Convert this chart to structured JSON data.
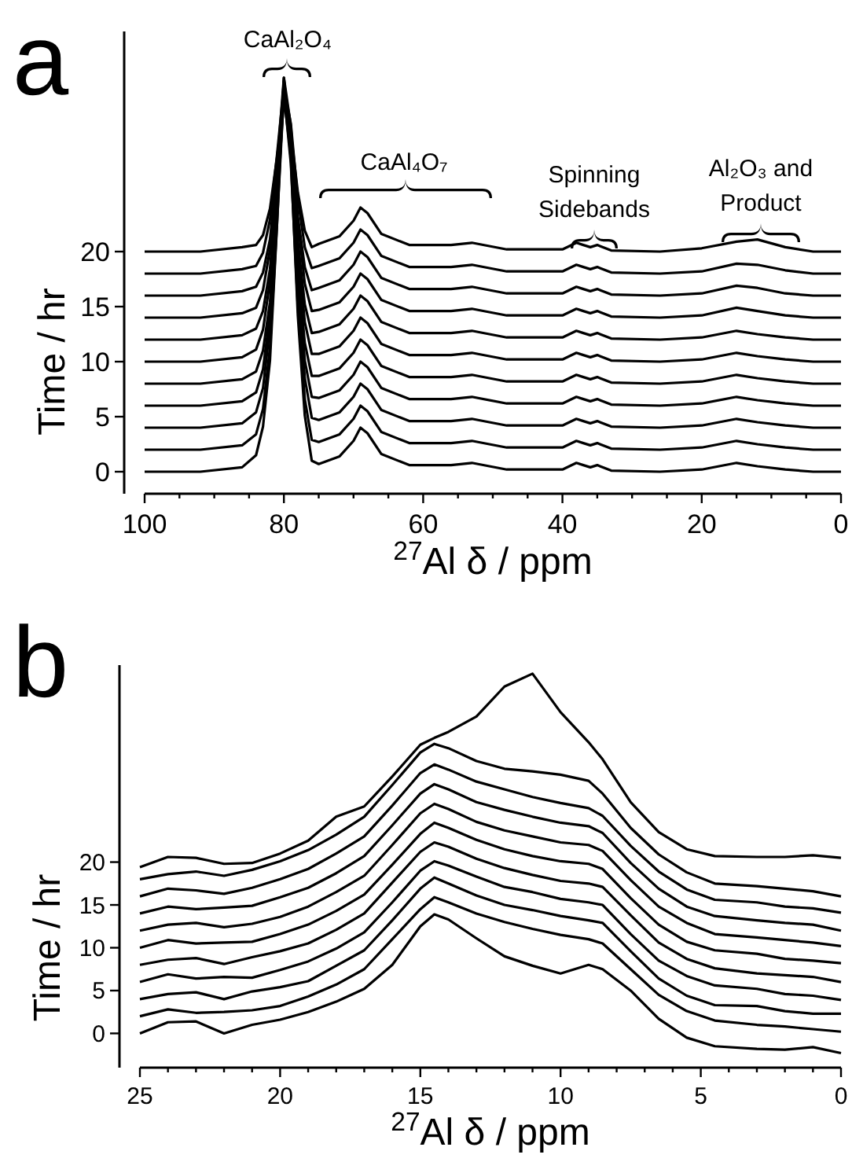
{
  "chart_data": [
    {
      "type": "line",
      "title": "a",
      "xlabel": "$^{27}$Al δ / ppm",
      "ylabel": "Time / hr",
      "xlim": [
        100,
        0
      ],
      "ylim": [
        -2,
        40
      ],
      "xticks": [
        100,
        {
          "value": 95,
          "label": null
        },
        {
          "value": 90,
          "label": null
        },
        {
          "value": 85,
          "label": null
        },
        80,
        {
          "value": 75,
          "label": null
        },
        {
          "value": 70,
          "label": null
        },
        {
          "value": 65,
          "label": null
        },
        60,
        {
          "value": 55,
          "label": null
        },
        {
          "value": 50,
          "label": null
        },
        {
          "value": 45,
          "label": null
        },
        40,
        {
          "value": 35,
          "label": null
        },
        {
          "value": 30,
          "label": null
        },
        {
          "value": 25,
          "label": null
        },
        20,
        {
          "value": 15,
          "label": null
        },
        {
          "value": 10,
          "label": null
        },
        {
          "value": 5,
          "label": null
        },
        0
      ],
      "yticks": [
        0,
        5,
        10,
        15,
        20
      ],
      "grid": false,
      "x": [
        100,
        92,
        86,
        84,
        83,
        82,
        81,
        80,
        79,
        78,
        77,
        76,
        75,
        72,
        70,
        69,
        68,
        66,
        62,
        56,
        53,
        48,
        40,
        38,
        37,
        36,
        35,
        33,
        26,
        20,
        15,
        12,
        8,
        4,
        0
      ],
      "annotations": [
        "CaAl₂O₄",
        "CaAl₄O₇",
        "Spinning\nSidebands",
        "Al₂O₃ and\nProduct"
      ],
      "series": [
        {
          "color": "#000000",
          "values": [
            0,
            0,
            0.4,
            1.5,
            4.1,
            10.1,
            22.3,
            35.5,
            28.4,
            14.2,
            5.1,
            1,
            0.7,
            1.4,
            2.8,
            4,
            3.5,
            1.6,
            0.6,
            0.6,
            0.8,
            0.2,
            0.2,
            0.8,
            0.6,
            0.4,
            0.6,
            0.1,
            0,
            0.2,
            0.8,
            0.5,
            0.2,
            0,
            0
          ]
        },
        {
          "color": "#000000",
          "values": [
            2,
            2,
            2.4,
            3.4,
            5.7,
            11.3,
            22.4,
            34.5,
            28,
            15,
            6.6,
            2.9,
            2.7,
            3.4,
            4.8,
            6,
            5.5,
            3.6,
            2.6,
            2.6,
            2.8,
            2.2,
            2.2,
            2.8,
            2.6,
            2.4,
            2.6,
            2.1,
            2,
            2.2,
            2.8,
            2.5,
            2.2,
            2,
            2
          ]
        },
        {
          "color": "#000000",
          "values": [
            4,
            4,
            4.4,
            5.4,
            7.6,
            13.1,
            24,
            35.8,
            29.5,
            16.7,
            8.5,
            4.9,
            4.7,
            5.4,
            6.8,
            8,
            7.5,
            5.6,
            4.6,
            4.6,
            4.8,
            4.2,
            4.2,
            4.8,
            4.6,
            4.4,
            4.6,
            4.1,
            4,
            4.2,
            4.8,
            4.5,
            4.2,
            4,
            4
          ]
        },
        {
          "color": "#000000",
          "values": [
            6,
            6,
            6.4,
            7.2,
            9.3,
            14.3,
            24.2,
            35,
            29.2,
            17.6,
            10.1,
            6.8,
            6.7,
            7.4,
            8.8,
            10,
            9.5,
            7.6,
            6.6,
            6.6,
            6.8,
            6.2,
            6.2,
            6.8,
            6.6,
            6.4,
            6.6,
            6.1,
            6,
            6.2,
            6.8,
            6.5,
            6.2,
            6,
            6
          ]
        },
        {
          "color": "#000000",
          "values": [
            8,
            8,
            8.4,
            9.1,
            11,
            15.4,
            24.3,
            34,
            28.8,
            18.4,
            11.7,
            8.7,
            8.7,
            9.4,
            10.8,
            12,
            11.5,
            9.6,
            8.6,
            8.6,
            8.8,
            8.2,
            8.2,
            8.8,
            8.6,
            8.4,
            8.6,
            8.1,
            8,
            8.2,
            8.8,
            8.5,
            8.2,
            8,
            8
          ]
        },
        {
          "color": "#000000",
          "values": [
            10,
            10,
            10.4,
            11.1,
            12.9,
            17.3,
            26,
            35.5,
            30.4,
            20.2,
            13.6,
            10.7,
            10.7,
            11.4,
            12.8,
            14,
            13.5,
            11.6,
            10.6,
            10.6,
            10.8,
            10.2,
            10.2,
            10.8,
            10.6,
            10.4,
            10.6,
            10.1,
            10,
            10.2,
            10.8,
            10.5,
            10.2,
            10,
            10
          ]
        },
        {
          "color": "#000000",
          "values": [
            12,
            12,
            12.4,
            13,
            14.6,
            18.4,
            26.1,
            34.5,
            30,
            21,
            15.2,
            12.6,
            12.7,
            13.4,
            14.8,
            16,
            15.5,
            13.6,
            12.6,
            12.6,
            12.8,
            12.2,
            12.2,
            12.8,
            12.6,
            12.4,
            12.6,
            12.1,
            12,
            12.2,
            12.8,
            12.5,
            12.2,
            12,
            12
          ]
        },
        {
          "color": "#000000",
          "values": [
            14,
            14,
            14.4,
            14.9,
            16.5,
            20.2,
            27.7,
            35.8,
            31.4,
            22.7,
            17.1,
            14.6,
            14.7,
            15.4,
            16.8,
            18,
            17.5,
            15.6,
            14.6,
            14.6,
            14.8,
            14.2,
            14.2,
            14.8,
            14.6,
            14.4,
            14.6,
            14.1,
            14,
            14.2,
            14.9,
            14.6,
            14.2,
            14,
            14
          ]
        },
        {
          "color": "#000000",
          "values": [
            16,
            16,
            16.4,
            16.8,
            18.1,
            21.1,
            27.3,
            34,
            30.4,
            23.2,
            18.6,
            16.5,
            16.7,
            17.4,
            18.8,
            20,
            19.5,
            17.6,
            16.6,
            16.6,
            16.8,
            16.2,
            16.2,
            16.8,
            16.6,
            16.4,
            16.6,
            16.1,
            16,
            16.2,
            16.9,
            16.7,
            16.2,
            16,
            16
          ]
        },
        {
          "color": "#000000",
          "values": [
            18,
            18,
            18.4,
            18.7,
            19.9,
            22.9,
            28.7,
            35,
            31.6,
            24.8,
            20.4,
            18.5,
            18.7,
            19.4,
            20.8,
            22,
            21.5,
            19.6,
            18.6,
            18.6,
            18.8,
            18.2,
            18.2,
            18.8,
            18.6,
            18.4,
            18.6,
            18.1,
            18,
            18.2,
            18.9,
            18.8,
            18.3,
            18,
            18
          ]
        },
        {
          "color": "#000000",
          "values": [
            20,
            20,
            20.4,
            20.6,
            21.5,
            23.9,
            28.5,
            33.5,
            30.8,
            25.4,
            21.9,
            20.4,
            20.7,
            21.4,
            22.8,
            24,
            23.5,
            21.6,
            20.6,
            20.6,
            20.8,
            20.2,
            20.2,
            20.8,
            20.6,
            20.4,
            20.6,
            20.1,
            20,
            20.3,
            20.9,
            21.1,
            20.4,
            20,
            20
          ]
        }
      ]
    },
    {
      "type": "line",
      "title": "b",
      "xlabel": "$^{27}$Al δ / ppm",
      "ylabel": "Time / hr",
      "xlim": [
        25,
        0
      ],
      "ylim": [
        -4,
        43
      ],
      "xticks": [
        25,
        {
          "value": 24,
          "label": null
        },
        {
          "value": 23,
          "label": null
        },
        {
          "value": 22,
          "label": null
        },
        {
          "value": 21,
          "label": null
        },
        20,
        {
          "value": 19,
          "label": null
        },
        {
          "value": 18,
          "label": null
        },
        {
          "value": 17,
          "label": null
        },
        {
          "value": 16,
          "label": null
        },
        15,
        {
          "value": 14,
          "label": null
        },
        {
          "value": 13,
          "label": null
        },
        {
          "value": 12,
          "label": null
        },
        {
          "value": 11,
          "label": null
        },
        10,
        {
          "value": 9,
          "label": null
        },
        {
          "value": 8,
          "label": null
        },
        {
          "value": 7,
          "label": null
        },
        {
          "value": 6,
          "label": null
        },
        5,
        {
          "value": 4,
          "label": null
        },
        {
          "value": 3,
          "label": null
        },
        {
          "value": 2,
          "label": null
        },
        {
          "value": 1,
          "label": null
        },
        0
      ],
      "yticks": [
        0,
        5,
        10,
        15,
        20
      ],
      "grid": false,
      "x": [
        25,
        24,
        23,
        22,
        21,
        20,
        19,
        18,
        17,
        16,
        15,
        14.5,
        14,
        13,
        12,
        11,
        10,
        9,
        8.5,
        7.5,
        6.5,
        5.5,
        4.5,
        3,
        2,
        1,
        0
      ],
      "series": [
        {
          "color": "#000000",
          "values": [
            0,
            1.3,
            1.4,
            0,
            1,
            1.6,
            2.5,
            3.7,
            5.2,
            8,
            12.5,
            13.9,
            13.3,
            11.1,
            9,
            7.9,
            7,
            8,
            7.5,
            5,
            1.7,
            -0.5,
            -1.5,
            -1.8,
            -1.9,
            -1.6,
            -2.3
          ]
        },
        {
          "color": "#000000",
          "values": [
            2,
            2.8,
            2.4,
            2.5,
            2.7,
            3.2,
            4.3,
            5.7,
            7.5,
            11,
            14.5,
            15.9,
            15.3,
            14,
            13,
            12.2,
            11.5,
            11,
            10.5,
            7.5,
            4.5,
            2.6,
            1.5,
            1,
            0.8,
            0.5,
            0.2
          ]
        },
        {
          "color": "#000000",
          "values": [
            4,
            4.6,
            4.8,
            4,
            4.9,
            5.4,
            6.1,
            7.9,
            9.7,
            13.2,
            16.9,
            18.2,
            17.5,
            16.1,
            15,
            14.4,
            13.7,
            13.2,
            12.9,
            9.6,
            6.4,
            4.4,
            3.3,
            3.2,
            2.6,
            2.3,
            2.3
          ]
        },
        {
          "color": "#000000",
          "values": [
            6,
            6.9,
            6.4,
            6.6,
            6.5,
            7.4,
            8.4,
            9.9,
            11.8,
            15.3,
            19,
            20.1,
            19.6,
            18.3,
            17.1,
            16.5,
            15.7,
            15.3,
            15,
            11.6,
            8.5,
            6.7,
            5.6,
            5.2,
            4.6,
            4.4,
            3.9
          ]
        },
        {
          "color": "#000000",
          "values": [
            8,
            8.6,
            8.8,
            8.1,
            8.9,
            9.6,
            10.5,
            12.1,
            14,
            17.6,
            21.2,
            22.3,
            21.8,
            20.4,
            19.3,
            18.5,
            17.8,
            17.5,
            17.1,
            13.8,
            10.6,
            8.7,
            7.6,
            7,
            6.8,
            6.6,
            6
          ]
        },
        {
          "color": "#000000",
          "values": [
            10,
            10.9,
            10.5,
            10.6,
            10.7,
            11.6,
            12.7,
            14.3,
            16.2,
            19.7,
            23.3,
            24.6,
            24,
            22.6,
            21.5,
            20.7,
            20.1,
            19.8,
            19.2,
            15.8,
            12.7,
            10.7,
            9.7,
            9.3,
            8.7,
            8.5,
            8.2
          ]
        },
        {
          "color": "#000000",
          "values": [
            12,
            12.7,
            12.9,
            12.4,
            12.8,
            13.6,
            14.8,
            16.5,
            18.4,
            22,
            25.7,
            26.8,
            26.2,
            24.7,
            23.7,
            23,
            22.3,
            22,
            21.3,
            17.9,
            14.8,
            12.9,
            11.6,
            11.2,
            10.9,
            10.6,
            10.2
          ]
        },
        {
          "color": "#000000",
          "values": [
            14,
            14.8,
            14.5,
            14.7,
            14.9,
            15.9,
            17,
            18.7,
            20.7,
            24.3,
            28,
            29.1,
            28.5,
            27,
            26.1,
            25.3,
            24.6,
            24.2,
            23.4,
            19.9,
            16.9,
            14.8,
            13.7,
            13.2,
            12.9,
            12.7,
            12
          ]
        },
        {
          "color": "#000000",
          "values": [
            16,
            16.9,
            16.7,
            16.3,
            17,
            18,
            19.2,
            21,
            23,
            26.6,
            30.4,
            31.4,
            30.8,
            29.4,
            28.5,
            27.6,
            26.9,
            26.3,
            25.4,
            21.9,
            18.9,
            16.8,
            15.6,
            15.3,
            14.8,
            14.6,
            14.1
          ]
        },
        {
          "color": "#000000",
          "values": [
            18,
            18.6,
            18.9,
            18.4,
            19.1,
            20.1,
            21.4,
            23.2,
            25.3,
            29,
            32.8,
            33.8,
            33.3,
            31.8,
            30.9,
            30.6,
            30.2,
            29.5,
            28,
            24,
            20.9,
            18.8,
            17.5,
            17.2,
            16.9,
            16.6,
            16
          ]
        },
        {
          "color": "#000000",
          "values": [
            19.4,
            20.6,
            20.5,
            19.8,
            19.9,
            21,
            22.5,
            25.3,
            26.5,
            30,
            33.7,
            34.5,
            35.2,
            37,
            40.5,
            42,
            37.5,
            34,
            32,
            27,
            23.5,
            21.5,
            20.7,
            20.6,
            20.6,
            20.8,
            20.5
          ]
        }
      ]
    }
  ]
}
